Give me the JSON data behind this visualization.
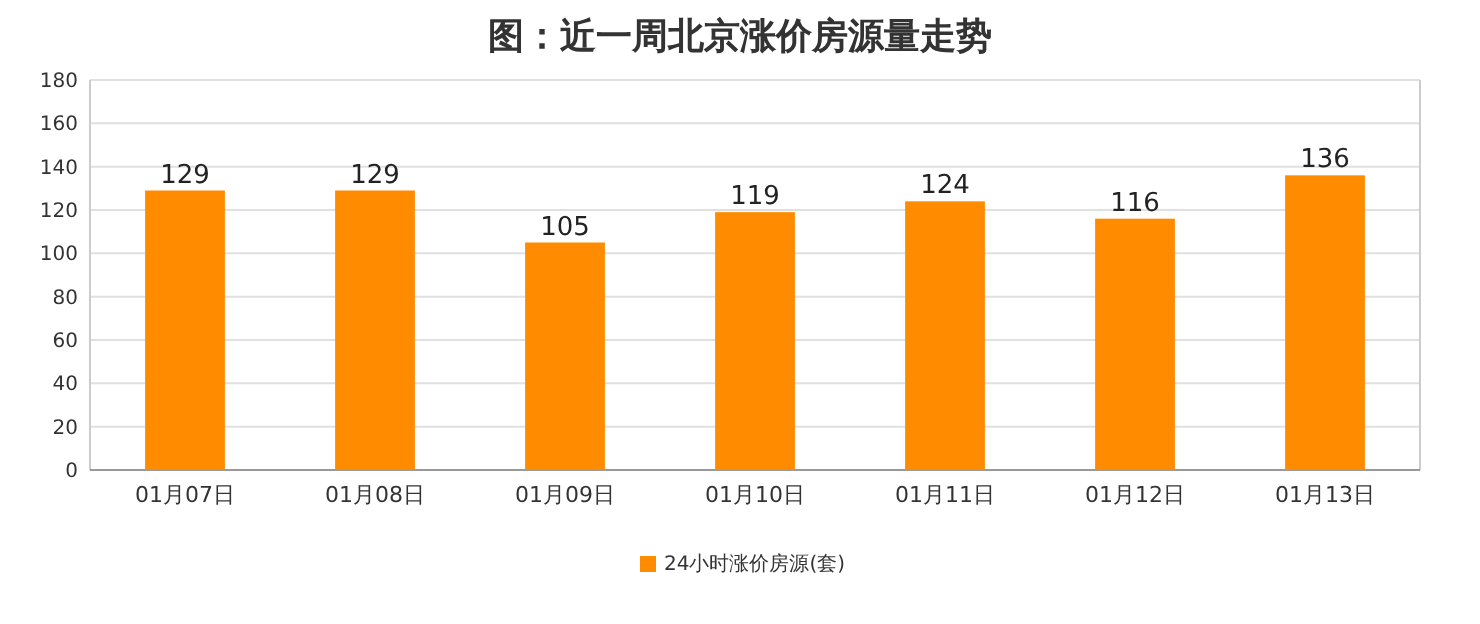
{
  "chart_data": {
    "type": "bar",
    "title": "图：近一周北京涨价房源量走势",
    "categories": [
      "01月07日",
      "01月08日",
      "01月09日",
      "01月10日",
      "01月11日",
      "01月12日",
      "01月13日"
    ],
    "series": [
      {
        "name": "24小时涨价房源(套)",
        "color": "#ff8c00",
        "values": [
          129,
          129,
          105,
          119,
          124,
          116,
          136
        ]
      }
    ],
    "ylim": [
      0,
      180
    ],
    "yticks": [
      0,
      20,
      40,
      60,
      80,
      100,
      120,
      140,
      160,
      180
    ],
    "grid": "y",
    "legend": "bottom",
    "data_labels": true
  }
}
